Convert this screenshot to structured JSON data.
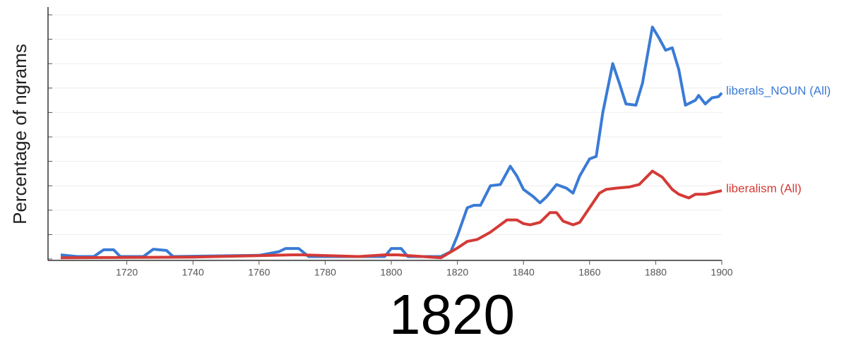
{
  "chart_data": {
    "type": "line",
    "title": "1820",
    "ylabel": "Percentage of ngrams",
    "xlim": [
      1700,
      1900
    ],
    "xticks": [
      1720,
      1740,
      1760,
      1780,
      1800,
      1820,
      1840,
      1860,
      1880,
      1900
    ],
    "ylim": [
      0,
      10
    ],
    "yticks": [
      0,
      1,
      2,
      3,
      4,
      5,
      6,
      7,
      8,
      9,
      10
    ],
    "grid": true,
    "series": [
      {
        "name": "liberals_NOUN (All)",
        "color": "#3a7bd5",
        "x": [
          1700,
          1705,
          1710,
          1713,
          1716,
          1718,
          1725,
          1728,
          1732,
          1734,
          1760,
          1766,
          1768,
          1772,
          1775,
          1790,
          1798,
          1800,
          1803,
          1805,
          1815,
          1818,
          1820,
          1823,
          1825,
          1827,
          1830,
          1833,
          1836,
          1838,
          1840,
          1843,
          1845,
          1847,
          1850,
          1853,
          1855,
          1857,
          1860,
          1862,
          1864,
          1867,
          1869,
          1871,
          1874,
          1876,
          1879,
          1881,
          1883,
          1885,
          1887,
          1889,
          1892,
          1893,
          1895,
          1897,
          1899,
          1900
        ],
        "values": [
          0.17,
          0.1,
          0.1,
          0.38,
          0.38,
          0.1,
          0.1,
          0.4,
          0.35,
          0.1,
          0.15,
          0.3,
          0.43,
          0.43,
          0.1,
          0.1,
          0.1,
          0.43,
          0.43,
          0.1,
          0.1,
          0.3,
          0.95,
          2.1,
          2.2,
          2.2,
          3.0,
          3.05,
          3.8,
          3.4,
          2.85,
          2.55,
          2.3,
          2.55,
          3.05,
          2.9,
          2.7,
          3.4,
          4.1,
          4.2,
          6.0,
          8.0,
          7.2,
          6.35,
          6.3,
          7.2,
          9.5,
          9.05,
          8.55,
          8.65,
          7.75,
          6.3,
          6.5,
          6.7,
          6.35,
          6.6,
          6.65,
          6.8
        ]
      },
      {
        "name": "liberalism (All)",
        "color": "#d43a36",
        "x": [
          1700,
          1740,
          1770,
          1773,
          1790,
          1798,
          1802,
          1815,
          1820,
          1823,
          1826,
          1830,
          1835,
          1838,
          1840,
          1842,
          1845,
          1848,
          1850,
          1852,
          1855,
          1857,
          1860,
          1863,
          1865,
          1868,
          1872,
          1875,
          1879,
          1882,
          1885,
          1887,
          1890,
          1892,
          1895,
          1900
        ],
        "values": [
          0.05,
          0.08,
          0.17,
          0.17,
          0.1,
          0.17,
          0.17,
          0.05,
          0.45,
          0.72,
          0.8,
          1.1,
          1.6,
          1.6,
          1.45,
          1.4,
          1.5,
          1.9,
          1.9,
          1.55,
          1.4,
          1.5,
          2.1,
          2.7,
          2.85,
          2.9,
          2.95,
          3.05,
          3.6,
          3.35,
          2.85,
          2.65,
          2.5,
          2.65,
          2.65,
          2.8
        ]
      }
    ]
  }
}
